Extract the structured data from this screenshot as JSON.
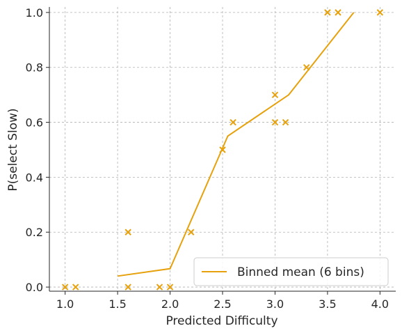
{
  "chart_data": {
    "type": "scatter",
    "xlabel": "Predicted Difficulty",
    "ylabel": "P(select Slow)",
    "xlim": [
      0.85,
      4.15
    ],
    "ylim": [
      -0.015,
      1.02
    ],
    "x_ticks": [
      1.0,
      1.5,
      2.0,
      2.5,
      3.0,
      3.5,
      4.0
    ],
    "x_tick_labels": [
      "1.0",
      "1.5",
      "2.0",
      "2.5",
      "3.0",
      "3.5",
      "4.0"
    ],
    "y_ticks": [
      0.0,
      0.2,
      0.4,
      0.6,
      0.8,
      1.0
    ],
    "y_tick_labels": [
      "0.0",
      "0.2",
      "0.4",
      "0.6",
      "0.8",
      "1.0"
    ],
    "grid": true,
    "legend_position": "bottom-right",
    "color": "#E6A10C",
    "points": [
      {
        "x": 1.0,
        "y": 0.0
      },
      {
        "x": 1.1,
        "y": 0.0
      },
      {
        "x": 1.6,
        "y": 0.2
      },
      {
        "x": 1.6,
        "y": 0.0
      },
      {
        "x": 1.9,
        "y": 0.0
      },
      {
        "x": 2.0,
        "y": 0.0
      },
      {
        "x": 2.2,
        "y": 0.2
      },
      {
        "x": 2.5,
        "y": 0.5
      },
      {
        "x": 2.6,
        "y": 0.6
      },
      {
        "x": 3.0,
        "y": 0.7
      },
      {
        "x": 3.0,
        "y": 0.6
      },
      {
        "x": 3.1,
        "y": 0.6
      },
      {
        "x": 3.3,
        "y": 0.8
      },
      {
        "x": 3.5,
        "y": 1.0
      },
      {
        "x": 3.6,
        "y": 1.0
      },
      {
        "x": 4.0,
        "y": 1.0
      }
    ],
    "series": [
      {
        "name": "Binned mean (6 bins)",
        "x": [
          1.5,
          2.0,
          2.55,
          3.13,
          3.75
        ],
        "y": [
          0.04,
          0.067,
          0.55,
          0.7,
          1.0
        ]
      }
    ]
  }
}
